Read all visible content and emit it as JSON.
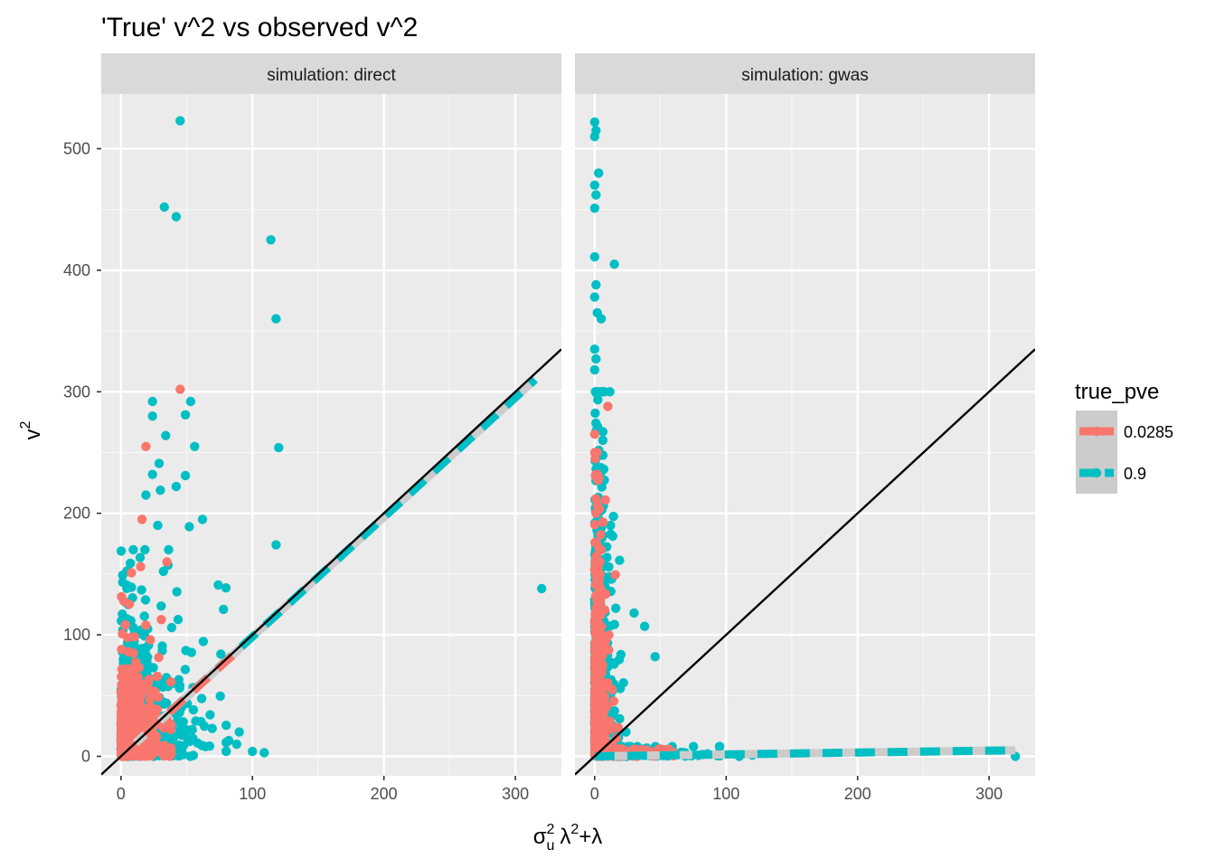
{
  "chart_data": {
    "type": "scatter",
    "title": "'True' v^2 vs observed v^2",
    "xlabel": {
      "base": "σ",
      "sup": "2",
      "sub": "u",
      "rest": "λ",
      "rest_sup": "2",
      "op": "+",
      "tail": "λ"
    },
    "ylabel": {
      "base": "v",
      "sup": "2"
    },
    "xlim": [
      -15,
      335
    ],
    "ylim": [
      -16,
      545
    ],
    "x_ticks": [
      0,
      100,
      200,
      300
    ],
    "y_ticks": [
      0,
      100,
      200,
      300,
      400,
      500
    ],
    "grid": true,
    "legend": {
      "title": "true_pve",
      "placement": "right",
      "entries": [
        {
          "label": "0.0285",
          "color": "#F8766D"
        },
        {
          "label": "0.9",
          "color": "#00BFC4"
        }
      ]
    },
    "reference_line": {
      "slope": 1,
      "intercept": 0,
      "color": "#000000"
    },
    "panels": [
      {
        "strip": "simulation: direct",
        "fits": [
          {
            "series": "0.9",
            "x": [
              0,
              315
            ],
            "y": [
              0,
              310
            ]
          },
          {
            "series": "0.0285",
            "x": [
              0,
              90
            ],
            "y": [
              0,
              88
            ]
          }
        ],
        "points": [
          {
            "series": "0.9",
            "x": 45,
            "y": 523
          },
          {
            "series": "0.9",
            "x": 33,
            "y": 452
          },
          {
            "series": "0.9",
            "x": 42,
            "y": 444
          },
          {
            "series": "0.9",
            "x": 114,
            "y": 425
          },
          {
            "series": "0.9",
            "x": 118,
            "y": 360
          },
          {
            "series": "0.9",
            "x": 24,
            "y": 292
          },
          {
            "series": "0.9",
            "x": 53,
            "y": 292
          },
          {
            "series": "0.9",
            "x": 49,
            "y": 281
          },
          {
            "series": "0.9",
            "x": 24,
            "y": 280
          },
          {
            "series": "0.9",
            "x": 34,
            "y": 264
          },
          {
            "series": "0.9",
            "x": 56,
            "y": 255
          },
          {
            "series": "0.9",
            "x": 120,
            "y": 254
          },
          {
            "series": "0.9",
            "x": 29,
            "y": 241
          },
          {
            "series": "0.9",
            "x": 24,
            "y": 232
          },
          {
            "series": "0.9",
            "x": 49,
            "y": 231
          },
          {
            "series": "0.9",
            "x": 30,
            "y": 219
          },
          {
            "series": "0.9",
            "x": 19,
            "y": 215
          },
          {
            "series": "0.9",
            "x": 42,
            "y": 222
          },
          {
            "series": "0.9",
            "x": 62,
            "y": 195
          },
          {
            "series": "0.9",
            "x": 52,
            "y": 189
          },
          {
            "series": "0.9",
            "x": 28,
            "y": 190
          },
          {
            "series": "0.9",
            "x": 118,
            "y": 174
          },
          {
            "series": "0.9",
            "x": 320,
            "y": 138
          },
          {
            "series": "0.9",
            "x": 74,
            "y": 141
          },
          {
            "series": "0.9",
            "x": 78,
            "y": 121
          },
          {
            "series": "0.9",
            "x": 100,
            "y": 4
          },
          {
            "series": "0.9",
            "x": 109,
            "y": 3
          },
          {
            "series": "0.9",
            "x": 82,
            "y": 13
          },
          {
            "series": "0.9",
            "x": 88,
            "y": 10
          },
          {
            "series": "0.9",
            "x": 90,
            "y": 20
          },
          {
            "series": "0.0285",
            "x": 45,
            "y": 302
          },
          {
            "series": "0.0285",
            "x": 19,
            "y": 255
          },
          {
            "series": "0.0285",
            "x": 16,
            "y": 195
          },
          {
            "series": "0.0285",
            "x": 8,
            "y": 151
          },
          {
            "series": "0.0285",
            "x": 15,
            "y": 156
          },
          {
            "series": "0.0285",
            "x": 35,
            "y": 160
          }
        ],
        "clusters": [
          {
            "series": "0.9",
            "n": 900,
            "x_scale": 14,
            "y_scale": 30,
            "x_max": 80,
            "y_max": 170,
            "seed": 11
          },
          {
            "series": "0.0285",
            "n": 700,
            "x_scale": 9,
            "y_scale": 22,
            "x_max": 38,
            "y_max": 140,
            "seed": 23
          }
        ]
      },
      {
        "strip": "simulation: gwas",
        "fits": [
          {
            "series": "0.9",
            "x": [
              0,
              320
            ],
            "y": [
              0,
              5
            ]
          }
        ],
        "points": [
          {
            "series": "0.9",
            "x": 0,
            "y": 522
          },
          {
            "series": "0.9",
            "x": 1,
            "y": 515
          },
          {
            "series": "0.9",
            "x": 0,
            "y": 510
          },
          {
            "series": "0.9",
            "x": 3,
            "y": 480
          },
          {
            "series": "0.9",
            "x": 0,
            "y": 470
          },
          {
            "series": "0.9",
            "x": 1,
            "y": 462
          },
          {
            "series": "0.9",
            "x": 0,
            "y": 451
          },
          {
            "series": "0.9",
            "x": 15,
            "y": 405
          },
          {
            "series": "0.9",
            "x": 0,
            "y": 411
          },
          {
            "series": "0.9",
            "x": 1,
            "y": 388
          },
          {
            "series": "0.9",
            "x": 0,
            "y": 378
          },
          {
            "series": "0.9",
            "x": 2,
            "y": 365
          },
          {
            "series": "0.9",
            "x": 5,
            "y": 360
          },
          {
            "series": "0.9",
            "x": 0,
            "y": 335
          },
          {
            "series": "0.9",
            "x": 1,
            "y": 327
          },
          {
            "series": "0.9",
            "x": 0,
            "y": 318
          },
          {
            "series": "0.9",
            "x": 320,
            "y": 0
          },
          {
            "series": "0.9",
            "x": 120,
            "y": 1
          },
          {
            "series": "0.9",
            "x": 110,
            "y": 0
          },
          {
            "series": "0.9",
            "x": 95,
            "y": 1
          },
          {
            "series": "0.9",
            "x": 46,
            "y": 82
          },
          {
            "series": "0.9",
            "x": 38,
            "y": 107
          },
          {
            "series": "0.9",
            "x": 30,
            "y": 118
          },
          {
            "series": "0.9",
            "x": 13,
            "y": 146
          },
          {
            "series": "0.9",
            "x": 12,
            "y": 190
          },
          {
            "series": "0.0285",
            "x": 10,
            "y": 288
          },
          {
            "series": "0.0285",
            "x": 0,
            "y": 265
          },
          {
            "series": "0.0285",
            "x": 2,
            "y": 232
          },
          {
            "series": "0.0285",
            "x": 1,
            "y": 200
          },
          {
            "series": "0.0285",
            "x": 4,
            "y": 160
          }
        ],
        "clusters": [
          {
            "series": "0.9",
            "n": 700,
            "x_scale": 4,
            "y_scale": 75,
            "x_max": 35,
            "y_max": 300,
            "seed": 37
          },
          {
            "series": "0.9",
            "n": 250,
            "x_scale": 25,
            "y_scale": 3,
            "x_max": 95,
            "y_max": 8,
            "seed": 41
          },
          {
            "series": "0.0285",
            "n": 600,
            "x_scale": 3,
            "y_scale": 55,
            "x_max": 25,
            "y_max": 250,
            "seed": 53
          },
          {
            "series": "0.0285",
            "n": 150,
            "x_scale": 18,
            "y_scale": 3,
            "x_max": 60,
            "y_max": 6,
            "seed": 61
          }
        ]
      }
    ]
  }
}
